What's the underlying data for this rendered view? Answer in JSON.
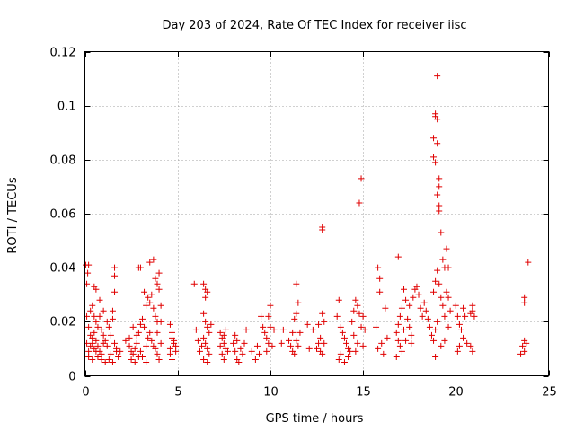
{
  "chart_data": {
    "type": "scatter",
    "title": "Day 203 of 2024, Rate Of TEC Index for receiver iisc",
    "xlabel": "GPS time / hours",
    "ylabel": "ROTI / TECUs",
    "xlim": [
      0,
      25
    ],
    "ylim": [
      0,
      0.12
    ],
    "x_ticks": [
      0,
      5,
      10,
      15,
      20,
      25
    ],
    "x_tick_labels": [
      "0",
      "5",
      "10",
      "15",
      "20",
      "25"
    ],
    "y_ticks": [
      0,
      0.02,
      0.04,
      0.06,
      0.08,
      0.1,
      0.12
    ],
    "y_tick_labels": [
      "0",
      "0.02",
      "0.04",
      "0.06",
      "0.08",
      "0.1",
      "0.12"
    ],
    "grid": true,
    "legend": "none",
    "marker": "plus",
    "color": "#e00000",
    "points": [
      [
        0.05,
        0.041
      ],
      [
        0.1,
        0.034
      ],
      [
        0.15,
        0.038
      ],
      [
        0.2,
        0.041
      ],
      [
        0.1,
        0.022
      ],
      [
        0.2,
        0.018
      ],
      [
        0.3,
        0.015
      ],
      [
        0.4,
        0.012
      ],
      [
        0.5,
        0.01
      ],
      [
        0.6,
        0.009
      ],
      [
        0.1,
        0.012
      ],
      [
        0.2,
        0.009
      ],
      [
        0.3,
        0.011
      ],
      [
        0.4,
        0.014
      ],
      [
        0.5,
        0.016
      ],
      [
        0.6,
        0.013
      ],
      [
        0.7,
        0.011
      ],
      [
        0.8,
        0.009
      ],
      [
        0.9,
        0.008
      ],
      [
        1.0,
        0.012
      ],
      [
        0.3,
        0.024
      ],
      [
        0.4,
        0.026
      ],
      [
        0.5,
        0.022
      ],
      [
        0.6,
        0.02
      ],
      [
        0.7,
        0.018
      ],
      [
        0.8,
        0.022
      ],
      [
        0.9,
        0.017
      ],
      [
        1.0,
        0.015
      ],
      [
        1.1,
        0.013
      ],
      [
        1.2,
        0.011
      ],
      [
        0.5,
        0.033
      ],
      [
        0.6,
        0.032
      ],
      [
        0.8,
        0.028
      ],
      [
        1.0,
        0.024
      ],
      [
        1.2,
        0.02
      ],
      [
        1.3,
        0.018
      ],
      [
        1.4,
        0.015
      ],
      [
        1.5,
        0.021
      ],
      [
        1.6,
        0.012
      ],
      [
        1.7,
        0.01
      ],
      [
        0.2,
        0.007
      ],
      [
        0.4,
        0.006
      ],
      [
        0.7,
        0.007
      ],
      [
        1.1,
        0.005
      ],
      [
        1.3,
        0.006
      ],
      [
        1.5,
        0.005
      ],
      [
        1.8,
        0.007
      ],
      [
        1.9,
        0.009
      ],
      [
        1.6,
        0.04
      ],
      [
        1.6,
        0.037
      ],
      [
        1.6,
        0.031
      ],
      [
        1.5,
        0.024
      ],
      [
        0.9,
        0.006
      ],
      [
        1.4,
        0.008
      ],
      [
        1.7,
        0.009
      ],
      [
        2.2,
        0.013
      ],
      [
        2.4,
        0.011
      ],
      [
        2.5,
        0.009
      ],
      [
        2.6,
        0.008
      ],
      [
        2.7,
        0.01
      ],
      [
        2.8,
        0.012
      ],
      [
        2.9,
        0.016
      ],
      [
        3.0,
        0.019
      ],
      [
        3.1,
        0.021
      ],
      [
        3.2,
        0.018
      ],
      [
        2.5,
        0.006
      ],
      [
        2.7,
        0.005
      ],
      [
        2.9,
        0.007
      ],
      [
        3.0,
        0.009
      ],
      [
        3.3,
        0.011
      ],
      [
        3.4,
        0.014
      ],
      [
        3.5,
        0.016
      ],
      [
        3.6,
        0.013
      ],
      [
        3.7,
        0.011
      ],
      [
        3.8,
        0.01
      ],
      [
        2.9,
        0.04
      ],
      [
        3.0,
        0.04
      ],
      [
        3.2,
        0.031
      ],
      [
        3.3,
        0.026
      ],
      [
        3.4,
        0.029
      ],
      [
        3.5,
        0.027
      ],
      [
        3.6,
        0.03
      ],
      [
        3.7,
        0.025
      ],
      [
        3.8,
        0.022
      ],
      [
        3.9,
        0.02
      ],
      [
        3.5,
        0.042
      ],
      [
        3.7,
        0.043
      ],
      [
        3.8,
        0.036
      ],
      [
        3.9,
        0.034
      ],
      [
        4.0,
        0.038
      ],
      [
        4.0,
        0.032
      ],
      [
        4.1,
        0.026
      ],
      [
        4.1,
        0.02
      ],
      [
        3.9,
        0.008
      ],
      [
        4.0,
        0.006
      ],
      [
        2.8,
        0.015
      ],
      [
        2.6,
        0.018
      ],
      [
        3.1,
        0.007
      ],
      [
        3.3,
        0.005
      ],
      [
        4.1,
        0.012
      ],
      [
        3.9,
        0.016
      ],
      [
        2.4,
        0.014
      ],
      [
        4.6,
        0.019
      ],
      [
        4.7,
        0.016
      ],
      [
        4.8,
        0.013
      ],
      [
        4.9,
        0.011
      ],
      [
        4.6,
        0.01
      ],
      [
        4.7,
        0.014
      ],
      [
        4.8,
        0.012
      ],
      [
        4.6,
        0.008
      ],
      [
        4.7,
        0.006
      ],
      [
        4.9,
        0.009
      ],
      [
        5.9,
        0.034
      ],
      [
        6.0,
        0.017
      ],
      [
        6.1,
        0.013
      ],
      [
        6.3,
        0.011
      ],
      [
        6.4,
        0.034
      ],
      [
        6.5,
        0.032
      ],
      [
        6.5,
        0.029
      ],
      [
        6.6,
        0.031
      ],
      [
        6.4,
        0.023
      ],
      [
        6.5,
        0.02
      ],
      [
        6.6,
        0.018
      ],
      [
        6.7,
        0.016
      ],
      [
        6.4,
        0.014
      ],
      [
        6.5,
        0.012
      ],
      [
        6.6,
        0.01
      ],
      [
        6.7,
        0.008
      ],
      [
        6.4,
        0.006
      ],
      [
        6.6,
        0.005
      ],
      [
        6.2,
        0.009
      ],
      [
        6.8,
        0.019
      ],
      [
        7.3,
        0.016
      ],
      [
        7.4,
        0.014
      ],
      [
        7.5,
        0.012
      ],
      [
        7.6,
        0.01
      ],
      [
        7.4,
        0.008
      ],
      [
        7.5,
        0.006
      ],
      [
        7.6,
        0.017
      ],
      [
        7.7,
        0.009
      ],
      [
        7.3,
        0.011
      ],
      [
        7.5,
        0.015
      ],
      [
        8.0,
        0.012
      ],
      [
        8.1,
        0.009
      ],
      [
        8.2,
        0.006
      ],
      [
        8.3,
        0.005
      ],
      [
        8.1,
        0.015
      ],
      [
        8.2,
        0.013
      ],
      [
        8.4,
        0.01
      ],
      [
        8.6,
        0.012
      ],
      [
        8.7,
        0.017
      ],
      [
        8.5,
        0.008
      ],
      [
        9.0,
        0.009
      ],
      [
        9.2,
        0.006
      ],
      [
        9.3,
        0.011
      ],
      [
        9.5,
        0.022
      ],
      [
        9.6,
        0.018
      ],
      [
        9.7,
        0.016
      ],
      [
        9.8,
        0.014
      ],
      [
        9.9,
        0.012
      ],
      [
        10.0,
        0.026
      ],
      [
        9.9,
        0.022
      ],
      [
        10.0,
        0.018
      ],
      [
        9.8,
        0.009
      ],
      [
        10.1,
        0.011
      ],
      [
        10.2,
        0.017
      ],
      [
        9.4,
        0.008
      ],
      [
        10.6,
        0.012
      ],
      [
        10.7,
        0.017
      ],
      [
        11.0,
        0.013
      ],
      [
        11.1,
        0.011
      ],
      [
        11.2,
        0.016
      ],
      [
        11.3,
        0.021
      ],
      [
        11.4,
        0.023
      ],
      [
        11.2,
        0.009
      ],
      [
        11.3,
        0.008
      ],
      [
        11.4,
        0.034
      ],
      [
        11.5,
        0.027
      ],
      [
        11.6,
        0.016
      ],
      [
        11.4,
        0.013
      ],
      [
        11.5,
        0.011
      ],
      [
        12.0,
        0.019
      ],
      [
        12.1,
        0.01
      ],
      [
        12.3,
        0.017
      ],
      [
        12.5,
        0.01
      ],
      [
        12.6,
        0.012
      ],
      [
        12.7,
        0.014
      ],
      [
        12.8,
        0.023
      ],
      [
        12.8,
        0.055
      ],
      [
        12.8,
        0.054
      ],
      [
        12.9,
        0.012
      ],
      [
        12.7,
        0.009
      ],
      [
        12.8,
        0.008
      ],
      [
        12.6,
        0.019
      ],
      [
        12.9,
        0.02
      ],
      [
        13.6,
        0.022
      ],
      [
        13.7,
        0.028
      ],
      [
        13.8,
        0.018
      ],
      [
        13.9,
        0.016
      ],
      [
        14.0,
        0.014
      ],
      [
        14.1,
        0.012
      ],
      [
        14.2,
        0.01
      ],
      [
        14.3,
        0.009
      ],
      [
        14.4,
        0.02
      ],
      [
        14.5,
        0.024
      ],
      [
        14.6,
        0.028
      ],
      [
        14.7,
        0.026
      ],
      [
        14.8,
        0.023
      ],
      [
        14.9,
        0.018
      ],
      [
        15.0,
        0.022
      ],
      [
        15.1,
        0.017
      ],
      [
        14.8,
        0.064
      ],
      [
        14.9,
        0.073
      ],
      [
        14.7,
        0.012
      ],
      [
        14.5,
        0.015
      ],
      [
        13.8,
        0.008
      ],
      [
        13.7,
        0.006
      ],
      [
        14.0,
        0.005
      ],
      [
        14.2,
        0.007
      ],
      [
        14.6,
        0.009
      ],
      [
        15.0,
        0.011
      ],
      [
        15.8,
        0.04
      ],
      [
        15.9,
        0.036
      ],
      [
        15.9,
        0.031
      ],
      [
        15.7,
        0.018
      ],
      [
        15.8,
        0.01
      ],
      [
        16.0,
        0.012
      ],
      [
        16.1,
        0.008
      ],
      [
        16.2,
        0.025
      ],
      [
        16.3,
        0.014
      ],
      [
        16.8,
        0.016
      ],
      [
        16.9,
        0.013
      ],
      [
        17.0,
        0.011
      ],
      [
        17.1,
        0.009
      ],
      [
        16.9,
        0.019
      ],
      [
        17.0,
        0.022
      ],
      [
        17.1,
        0.025
      ],
      [
        17.2,
        0.032
      ],
      [
        17.3,
        0.028
      ],
      [
        17.4,
        0.021
      ],
      [
        17.5,
        0.018
      ],
      [
        17.6,
        0.015
      ],
      [
        17.3,
        0.013
      ],
      [
        17.2,
        0.017
      ],
      [
        16.9,
        0.044
      ],
      [
        17.5,
        0.026
      ],
      [
        17.7,
        0.029
      ],
      [
        17.8,
        0.032
      ],
      [
        17.6,
        0.012
      ],
      [
        16.8,
        0.007
      ],
      [
        17.9,
        0.033
      ],
      [
        18.0,
        0.03
      ],
      [
        18.1,
        0.025
      ],
      [
        18.2,
        0.022
      ],
      [
        18.3,
        0.027
      ],
      [
        18.4,
        0.024
      ],
      [
        18.5,
        0.021
      ],
      [
        18.6,
        0.018
      ],
      [
        18.7,
        0.015
      ],
      [
        18.8,
        0.031
      ],
      [
        18.9,
        0.096
      ],
      [
        18.9,
        0.097
      ],
      [
        19.0,
        0.095
      ],
      [
        19.0,
        0.111
      ],
      [
        18.8,
        0.088
      ],
      [
        18.8,
        0.081
      ],
      [
        18.9,
        0.079
      ],
      [
        19.0,
        0.086
      ],
      [
        19.1,
        0.073
      ],
      [
        19.1,
        0.07
      ],
      [
        19.0,
        0.067
      ],
      [
        19.1,
        0.063
      ],
      [
        19.1,
        0.061
      ],
      [
        19.2,
        0.053
      ],
      [
        19.3,
        0.043
      ],
      [
        19.4,
        0.04
      ],
      [
        19.5,
        0.047
      ],
      [
        19.6,
        0.04
      ],
      [
        19.0,
        0.039
      ],
      [
        18.9,
        0.035
      ],
      [
        19.1,
        0.034
      ],
      [
        19.2,
        0.029
      ],
      [
        19.3,
        0.026
      ],
      [
        19.5,
        0.031
      ],
      [
        19.6,
        0.029
      ],
      [
        19.4,
        0.022
      ],
      [
        19.0,
        0.02
      ],
      [
        18.9,
        0.017
      ],
      [
        18.8,
        0.013
      ],
      [
        18.9,
        0.007
      ],
      [
        19.2,
        0.011
      ],
      [
        19.4,
        0.013
      ],
      [
        19.6,
        0.018
      ],
      [
        19.7,
        0.024
      ],
      [
        20.0,
        0.026
      ],
      [
        20.1,
        0.022
      ],
      [
        20.2,
        0.019
      ],
      [
        20.3,
        0.017
      ],
      [
        20.4,
        0.014
      ],
      [
        20.2,
        0.011
      ],
      [
        20.1,
        0.009
      ],
      [
        20.4,
        0.025
      ],
      [
        20.5,
        0.022
      ],
      [
        20.6,
        0.012
      ],
      [
        20.8,
        0.023
      ],
      [
        20.9,
        0.026
      ],
      [
        21.0,
        0.022
      ],
      [
        20.9,
        0.024
      ],
      [
        20.8,
        0.011
      ],
      [
        20.9,
        0.009
      ],
      [
        23.5,
        0.008
      ],
      [
        23.6,
        0.011
      ],
      [
        23.7,
        0.013
      ],
      [
        23.8,
        0.012
      ],
      [
        23.7,
        0.009
      ],
      [
        23.7,
        0.029
      ],
      [
        23.7,
        0.027
      ],
      [
        23.9,
        0.042
      ]
    ]
  }
}
